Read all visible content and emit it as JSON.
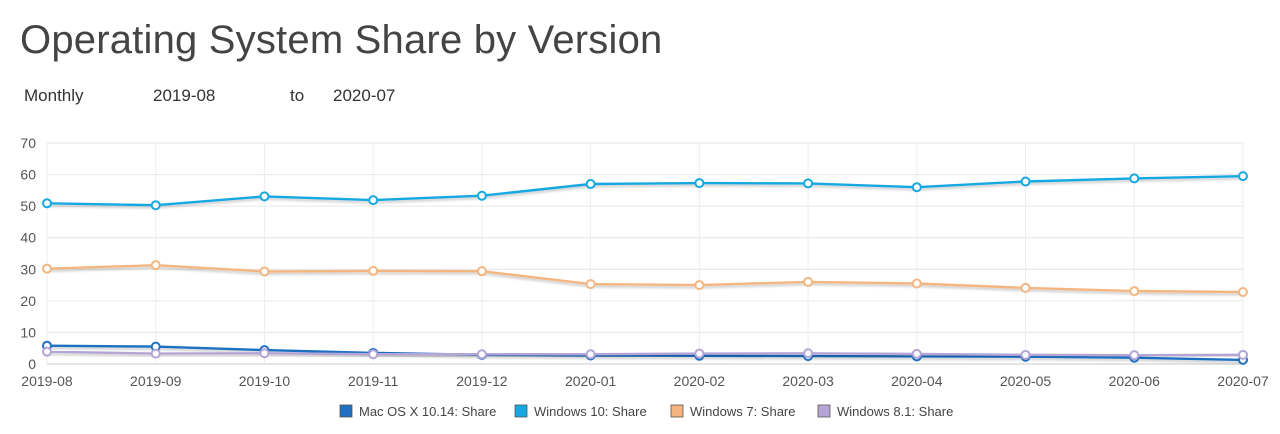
{
  "header": {
    "title": "Operating System Share by Version",
    "period": "Monthly",
    "from": "2019-08",
    "to_label": "to",
    "to": "2020-07"
  },
  "chart_data": {
    "type": "line",
    "title": "Operating System Share by Version",
    "xlabel": "",
    "ylabel": "",
    "ylim": [
      0,
      70
    ],
    "yticks": [
      0,
      10,
      20,
      30,
      40,
      50,
      60,
      70
    ],
    "grid": true,
    "legend_position": "bottom",
    "categories": [
      "2019-08",
      "2019-09",
      "2019-10",
      "2019-11",
      "2019-12",
      "2020-01",
      "2020-02",
      "2020-03",
      "2020-04",
      "2020-05",
      "2020-06",
      "2020-07"
    ],
    "series": [
      {
        "name": "Mac OS X 10.14: Share",
        "color": "#1f6fc2",
        "values": [
          5.8,
          5.5,
          4.4,
          3.5,
          2.9,
          2.7,
          2.6,
          2.5,
          2.4,
          2.3,
          2.0,
          1.3
        ]
      },
      {
        "name": "Windows 10: Share",
        "color": "#16a9e1",
        "values": [
          50.9,
          50.3,
          53.1,
          51.9,
          53.3,
          57.0,
          57.3,
          57.2,
          56.0,
          57.8,
          58.8,
          59.5
        ]
      },
      {
        "name": "Windows 7: Share",
        "color": "#f4b680",
        "values": [
          30.2,
          31.3,
          29.3,
          29.5,
          29.4,
          25.3,
          25.0,
          26.0,
          25.5,
          24.1,
          23.1,
          22.8
        ]
      },
      {
        "name": "Windows 8.1: Share",
        "color": "#b4a5d6",
        "values": [
          3.9,
          3.3,
          3.4,
          3.1,
          3.1,
          3.1,
          3.3,
          3.4,
          3.2,
          2.9,
          2.8,
          2.9
        ]
      }
    ]
  }
}
